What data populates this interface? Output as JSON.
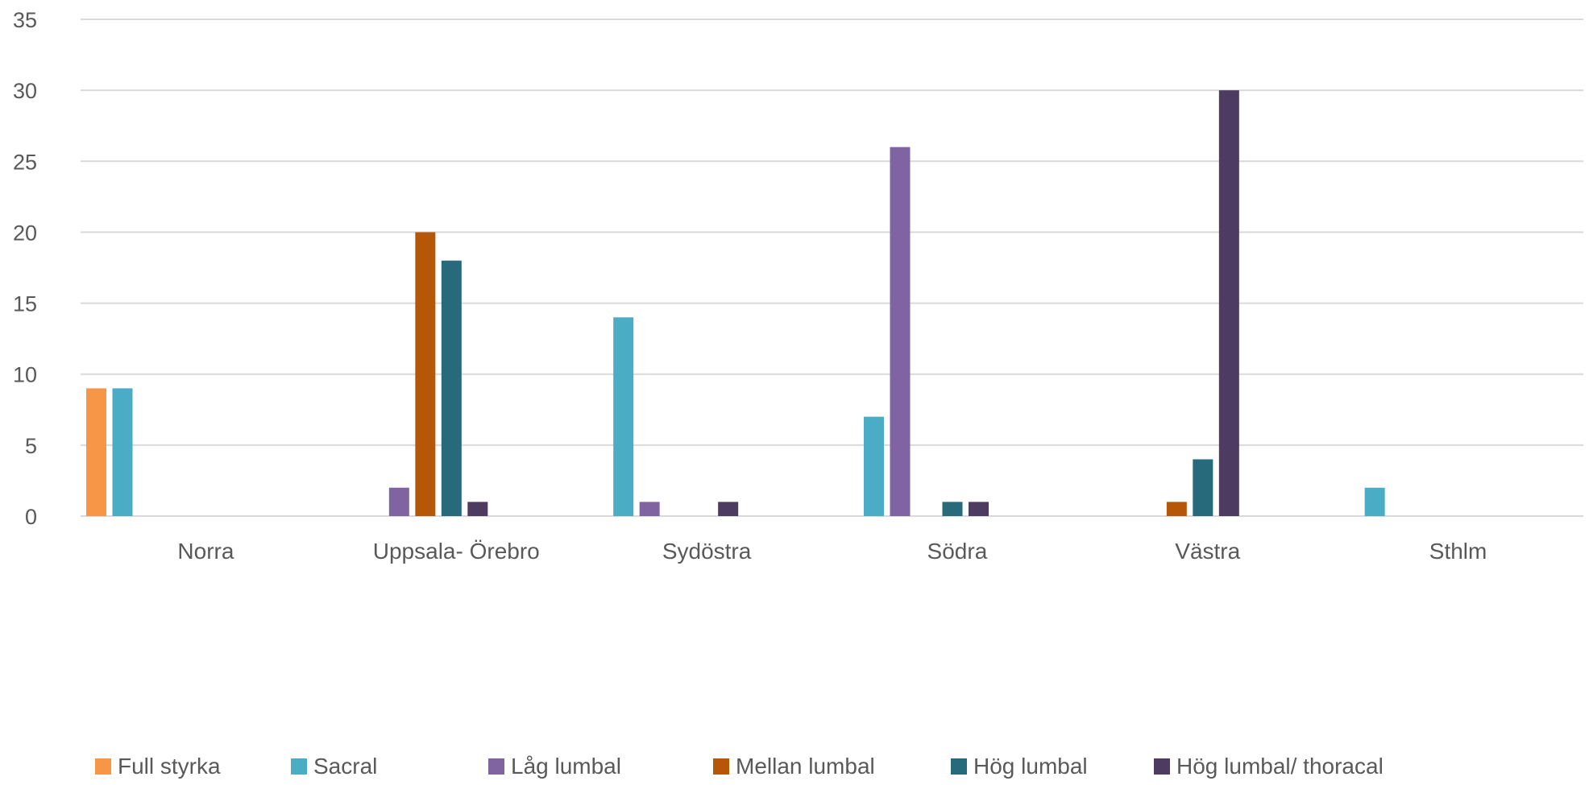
{
  "chart_data": {
    "type": "bar",
    "title": "",
    "xlabel": "",
    "ylabel": "",
    "ylim": [
      0,
      35
    ],
    "yticks": [
      0,
      5,
      10,
      15,
      20,
      25,
      30,
      35
    ],
    "grid": true,
    "legend_position": "bottom",
    "categories": [
      "Norra",
      "Uppsala- Örebro",
      "Sydöstra",
      "Södra",
      "Västra",
      "Sthlm"
    ],
    "series": [
      {
        "name": "Full styrka",
        "color": "#f79646",
        "values": [
          9,
          0,
          0,
          0,
          0,
          0
        ]
      },
      {
        "name": "Sacral",
        "color": "#4bacc6",
        "values": [
          9,
          0,
          14,
          7,
          0,
          2
        ]
      },
      {
        "name": "Låg lumbal",
        "color": "#8064a2",
        "values": [
          0,
          2,
          1,
          26,
          0,
          0
        ]
      },
      {
        "name": "Mellan lumbal",
        "color": "#b65708",
        "values": [
          0,
          20,
          0,
          0,
          1,
          0
        ]
      },
      {
        "name": "Hög lumbal",
        "color": "#276a7c",
        "values": [
          0,
          18,
          0,
          1,
          4,
          0
        ]
      },
      {
        "name": "Hög lumbal/ thoracal",
        "color": "#4d3b62",
        "values": [
          0,
          1,
          1,
          1,
          30,
          0
        ]
      }
    ]
  }
}
